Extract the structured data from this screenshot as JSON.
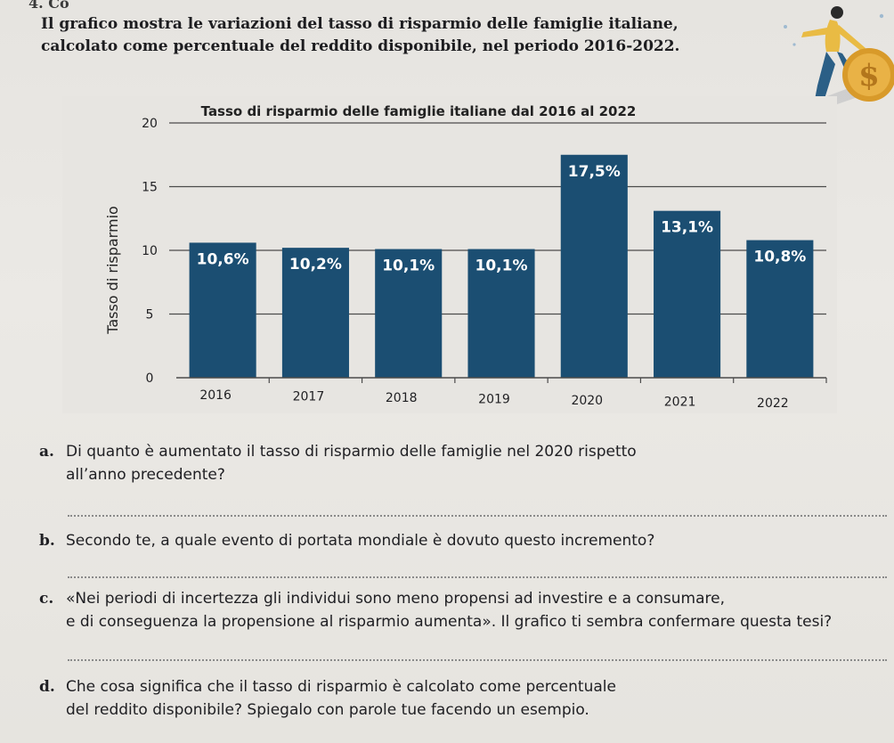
{
  "exercise": {
    "number": "4. Co"
  },
  "intro": {
    "line1": "Il grafico mostra le variazioni del tasso di risparmio delle famiglie italiane,",
    "line2": "calcolato come percentuale del reddito disponibile, nel periodo 2016-2022."
  },
  "colors": {
    "bar": "#1b4e72",
    "grid": "#4b4b4b",
    "text": "#1f1f22",
    "barLabel": "#ffffff",
    "illusYellow": "#e9bb44",
    "illusBlue": "#2b5f86"
  },
  "chart_data": {
    "type": "bar",
    "title": "Tasso di risparmio delle famiglie italiane dal 2016 al 2022",
    "xlabel": "",
    "ylabel": "Tasso di risparmio",
    "ylim": [
      0,
      20
    ],
    "yticks": [
      "0",
      "5",
      "10",
      "15",
      "20"
    ],
    "categories": [
      "2016",
      "2017",
      "2018",
      "2019",
      "2020",
      "2021",
      "2022"
    ],
    "values": [
      10.6,
      10.2,
      10.1,
      10.1,
      17.5,
      13.1,
      10.8
    ],
    "labels": [
      "10,6%",
      "10,2%",
      "10,1%",
      "10,1%",
      "17,5%",
      "13,1%",
      "10,8%"
    ]
  },
  "questions": {
    "a": {
      "letter": "a.",
      "line1": "Di quanto è aumentato il tasso di risparmio delle famiglie nel 2020 rispetto",
      "line2": "all’anno precedente?"
    },
    "b": {
      "letter": "b.",
      "line1": "Secondo te, a quale evento di portata mondiale è dovuto questo incremento?"
    },
    "c": {
      "letter": "c.",
      "line1": "«Nei periodi di incertezza gli individui sono meno propensi ad investire e a consumare,",
      "line2": "e di conseguenza la propensione al risparmio aumenta». Il grafico ti sembra confermare questa tesi?"
    },
    "d": {
      "letter": "d.",
      "line1": "Che cosa significa che il tasso di risparmio è calcolato come percentuale",
      "line2": "del reddito disponibile? Spiegalo con parole tue facendo un esempio."
    }
  }
}
